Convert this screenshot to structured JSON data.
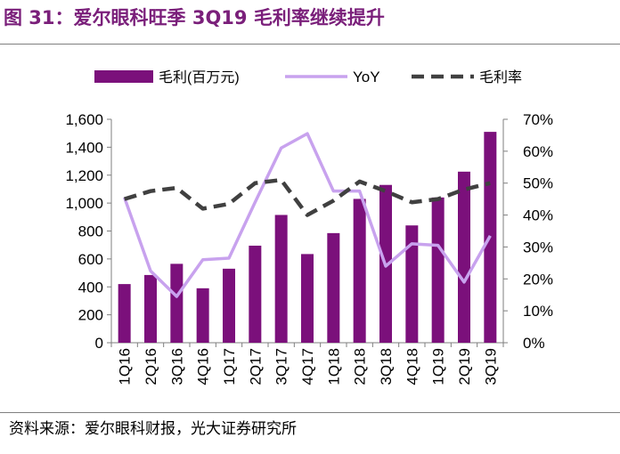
{
  "figure": {
    "title": "图 31：爱尔眼科旺季 3Q19 毛利率继续提升",
    "source": "资料来源：爱尔眼科财报，光大证券研究所"
  },
  "colors": {
    "title": "#7a1f7a",
    "bar": "#7b107b",
    "yoy": "#c8a2ee",
    "margin": "#404040"
  },
  "chart_data": {
    "type": "bar",
    "categories": [
      "1Q16",
      "2Q16",
      "3Q16",
      "4Q16",
      "1Q17",
      "2Q17",
      "3Q17",
      "4Q17",
      "1Q18",
      "2Q18",
      "3Q18",
      "4Q18",
      "1Q19",
      "2Q19",
      "3Q19"
    ],
    "series": [
      {
        "name": "毛利(百万元)",
        "type": "bar",
        "axis": "left",
        "values": [
          420,
          485,
          565,
          390,
          530,
          695,
          915,
          635,
          785,
          1030,
          1130,
          840,
          1040,
          1225,
          1510
        ]
      },
      {
        "name": "YoY",
        "type": "line",
        "axis": "right",
        "values": [
          45.5,
          22.5,
          14.5,
          26.0,
          26.5,
          44.0,
          61.0,
          65.5,
          47.5,
          47.5,
          24.0,
          31.0,
          30.5,
          19.0,
          33.5
        ]
      },
      {
        "name": "毛利率",
        "type": "line",
        "style": "dashed",
        "axis": "right",
        "values": [
          45.0,
          47.5,
          48.5,
          42.0,
          43.5,
          50.0,
          51.0,
          40.0,
          44.5,
          50.5,
          47.5,
          44.0,
          45.0,
          48.0,
          50.0
        ]
      }
    ],
    "ylim": [
      0,
      1600
    ],
    "yticks": [
      "0",
      "200",
      "400",
      "600",
      "800",
      "1,000",
      "1,200",
      "1,400",
      "1,600"
    ],
    "y2lim": [
      0,
      70
    ],
    "y2ticks": [
      "0%",
      "10%",
      "20%",
      "30%",
      "40%",
      "50%",
      "60%",
      "70%"
    ],
    "grid": false,
    "legend": "top"
  }
}
